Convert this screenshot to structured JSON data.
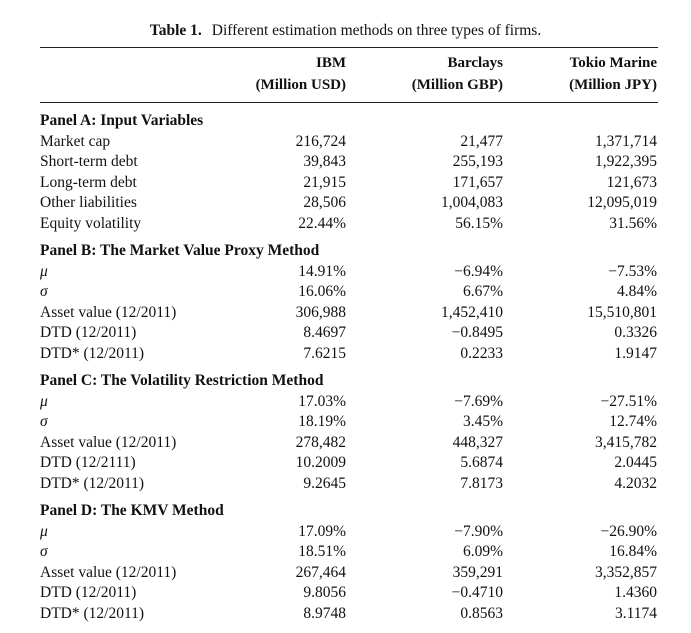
{
  "caption": {
    "label": "Table 1.",
    "text": "Different estimation methods on three types of firms."
  },
  "columns": [
    {
      "name": "IBM",
      "unit": "(Million USD)"
    },
    {
      "name": "Barclays",
      "unit": "(Million GBP)"
    },
    {
      "name": "Tokio Marine",
      "unit": "(Million JPY)"
    }
  ],
  "panels": [
    {
      "title": "Panel A: Input Variables",
      "rows": [
        {
          "label": "Market cap",
          "values": [
            "216,724",
            "21,477",
            "1,371,714"
          ]
        },
        {
          "label": "Short-term debt",
          "values": [
            "39,843",
            "255,193",
            "1,922,395"
          ]
        },
        {
          "label": "Long-term debt",
          "values": [
            "21,915",
            "171,657",
            "121,673"
          ]
        },
        {
          "label": "Other liabilities",
          "values": [
            "28,506",
            "1,004,083",
            "12,095,019"
          ]
        },
        {
          "label": "Equity volatility",
          "values": [
            "22.44%",
            "56.15%",
            "31.56%"
          ]
        }
      ]
    },
    {
      "title": "Panel B: The Market Value Proxy Method",
      "rows": [
        {
          "label": "μ",
          "greek": true,
          "values": [
            "14.91%",
            "−6.94%",
            "−7.53%"
          ]
        },
        {
          "label": "σ",
          "greek": true,
          "values": [
            "16.06%",
            "6.67%",
            "4.84%"
          ]
        },
        {
          "label": "Asset value (12/2011)",
          "values": [
            "306,988",
            "1,452,410",
            "15,510,801"
          ]
        },
        {
          "label": "DTD (12/2011)",
          "values": [
            "8.4697",
            "−0.8495",
            "0.3326"
          ]
        },
        {
          "label": "DTD* (12/2011)",
          "values": [
            "7.6215",
            "0.2233",
            "1.9147"
          ]
        }
      ]
    },
    {
      "title": "Panel C: The Volatility Restriction Method",
      "rows": [
        {
          "label": "μ",
          "greek": true,
          "values": [
            "17.03%",
            "−7.69%",
            "−27.51%"
          ]
        },
        {
          "label": "σ",
          "greek": true,
          "values": [
            "18.19%",
            "3.45%",
            "12.74%"
          ]
        },
        {
          "label": "Asset value (12/2011)",
          "values": [
            "278,482",
            "448,327",
            "3,415,782"
          ]
        },
        {
          "label": "DTD (12/2111)",
          "values": [
            "10.2009",
            "5.6874",
            "2.0445"
          ]
        },
        {
          "label": "DTD* (12/2011)",
          "values": [
            "9.2645",
            "7.8173",
            "4.2032"
          ]
        }
      ]
    },
    {
      "title": "Panel D: The KMV Method",
      "rows": [
        {
          "label": "μ",
          "greek": true,
          "values": [
            "17.09%",
            "−7.90%",
            "−26.90%"
          ]
        },
        {
          "label": "σ",
          "greek": true,
          "values": [
            "18.51%",
            "6.09%",
            "16.84%"
          ]
        },
        {
          "label": "Asset value (12/2011)",
          "values": [
            "267,464",
            "359,291",
            "3,352,857"
          ]
        },
        {
          "label": "DTD (12/2011)",
          "values": [
            "9.8056",
            "−0.4710",
            "1.4360"
          ]
        },
        {
          "label": "DTD* (12/2011)",
          "values": [
            "8.9748",
            "0.8563",
            "3.1174"
          ]
        }
      ]
    }
  ]
}
